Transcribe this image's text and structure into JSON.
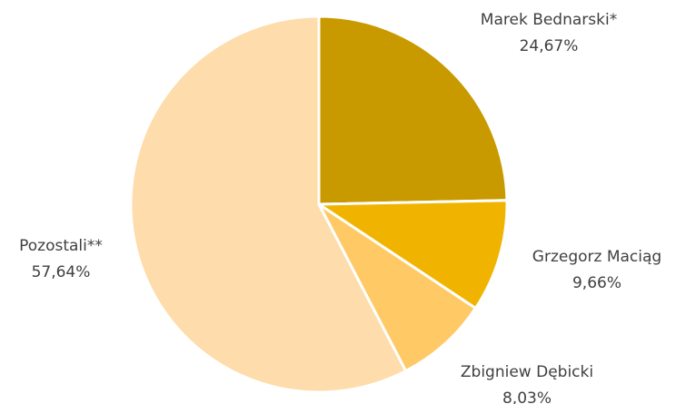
{
  "chart_data": {
    "type": "pie",
    "categories": [
      "Marek Bednarski*",
      "Grzegorz Maciąg",
      "Zbigniew Dębicki",
      "Pozostali**"
    ],
    "values": [
      24.67,
      9.66,
      8.03,
      57.64
    ],
    "value_labels": [
      "24,67%",
      "9,66%",
      "8,03%",
      "57,64%"
    ],
    "colors": [
      "#c89a00",
      "#f0b400",
      "#ffc966",
      "#fedcab"
    ]
  }
}
